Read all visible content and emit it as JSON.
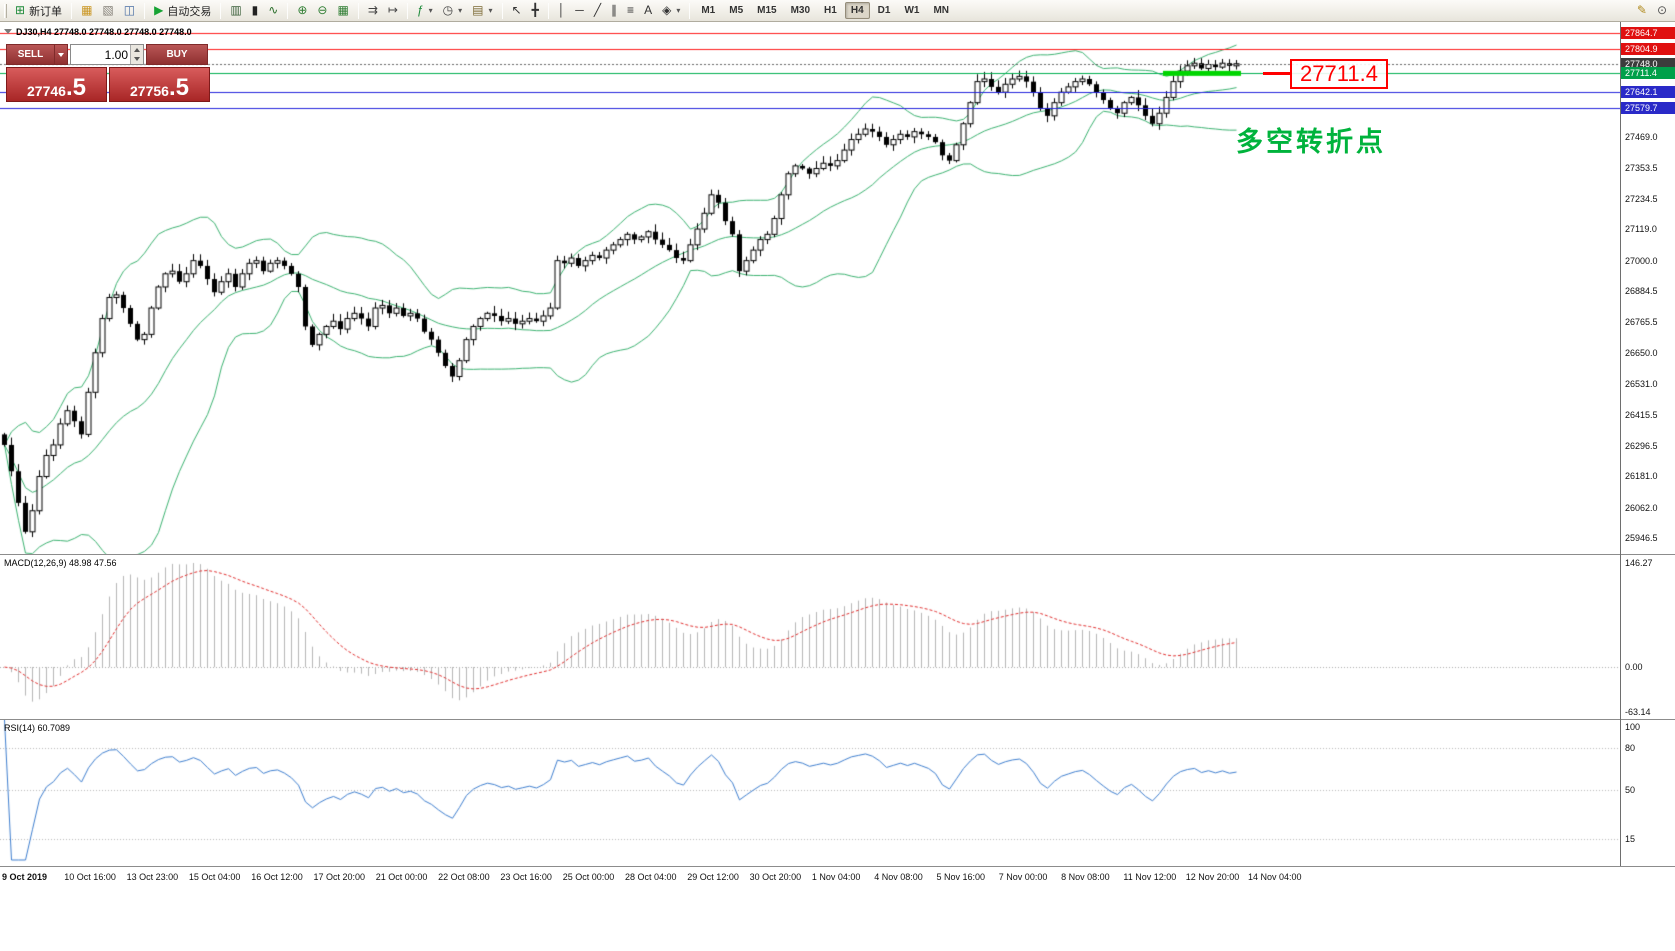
{
  "toolbar": {
    "new_order_label": "新订单",
    "autotrading_label": "自动交易",
    "groups": [
      {
        "items": [
          {
            "name": "new-order-button",
            "icon_name": "new-order-icon",
            "glyph": "⊞",
            "color": "#1d8a3a",
            "label_key": "new_order_label"
          }
        ]
      },
      {
        "items": [
          {
            "name": "new-chart-button",
            "icon_name": "new-chart-icon",
            "glyph": "▦",
            "color": "#c9941e"
          },
          {
            "name": "profiles-button",
            "icon_name": "profiles-icon",
            "glyph": "▧",
            "color": "#86827a"
          },
          {
            "name": "data-window-button",
            "icon_name": "data-window-icon",
            "glyph": "◫",
            "color": "#4a6fa5"
          }
        ]
      },
      {
        "items": [
          {
            "name": "autotrading-button",
            "icon_name": "autotrading-icon",
            "glyph": "▶",
            "color": "#17a334",
            "label_key": "autotrading_label"
          }
        ]
      },
      {
        "items": [
          {
            "name": "bar-chart-type-button",
            "icon_name": "bar-chart-icon",
            "glyph": "▥",
            "color": "#3a5f3a"
          },
          {
            "name": "candlestick-type-button",
            "icon_name": "candlestick-icon",
            "glyph": "▮",
            "color": "#222222"
          },
          {
            "name": "line-chart-type-button",
            "icon_name": "line-chart-icon",
            "glyph": "∿",
            "color": "#2a6e2a"
          }
        ]
      },
      {
        "items": [
          {
            "name": "zoom-in-button",
            "icon_name": "zoom-in-icon",
            "glyph": "⊕",
            "color": "#2e7d32"
          },
          {
            "name": "zoom-out-button",
            "icon_name": "zoom-out-icon",
            "glyph": "⊖",
            "color": "#2e7d32"
          },
          {
            "name": "tile-windows-button",
            "icon_name": "tile-windows-icon",
            "glyph": "▦",
            "color": "#2e7d32"
          }
        ]
      },
      {
        "items": [
          {
            "name": "auto-scroll-button",
            "icon_name": "auto-scroll-icon",
            "glyph": "⇉",
            "color": "#444444"
          },
          {
            "name": "chart-shift-button",
            "icon_name": "chart-shift-icon",
            "glyph": "↦",
            "color": "#444444"
          }
        ]
      },
      {
        "items": [
          {
            "name": "indicators-button",
            "icon_name": "indicators-icon",
            "glyph": "ƒ",
            "color": "#1d8a3a",
            "caret": true
          },
          {
            "name": "periods-button",
            "icon_name": "periods-icon",
            "glyph": "◷",
            "color": "#444444",
            "caret": true
          },
          {
            "name": "templates-button",
            "icon_name": "templates-icon",
            "glyph": "▤",
            "color": "#7c6a34",
            "caret": true
          }
        ]
      },
      {
        "items": [
          {
            "name": "cursor-button",
            "icon_name": "cursor-icon",
            "glyph": "↖",
            "color": "#333333"
          },
          {
            "name": "crosshair-button",
            "icon_name": "crosshair-icon",
            "glyph": "╋",
            "color": "#333333"
          }
        ]
      },
      {
        "items": [
          {
            "name": "vertical-line-button",
            "icon_name": "vertical-line-icon",
            "glyph": "│",
            "color": "#333333"
          },
          {
            "name": "horizontal-line-button",
            "icon_name": "horizontal-line-icon",
            "glyph": "─",
            "color": "#333333"
          },
          {
            "name": "trendline-button",
            "icon_name": "trendline-icon",
            "glyph": "╱",
            "color": "#333333"
          },
          {
            "name": "channel-button",
            "icon_name": "channel-icon",
            "glyph": "∥",
            "color": "#333333"
          },
          {
            "name": "fibonacci-button",
            "icon_name": "fibonacci-icon",
            "glyph": "≡",
            "color": "#333333"
          },
          {
            "name": "text-button",
            "icon_name": "text-icon",
            "glyph": "A",
            "color": "#333333"
          },
          {
            "name": "shapes-button",
            "icon_name": "shapes-icon",
            "glyph": "◈",
            "color": "#333333",
            "caret": true
          }
        ]
      }
    ],
    "timeframes": [
      "M1",
      "M5",
      "M15",
      "M30",
      "H1",
      "H4",
      "D1",
      "W1",
      "MN"
    ],
    "active_timeframe": "H4",
    "right_items": [
      {
        "name": "pencil-tool-button",
        "icon_name": "pencil-icon",
        "glyph": "✎",
        "color": "#b08a1e"
      },
      {
        "name": "search-button",
        "icon_name": "search-icon",
        "glyph": "⊙",
        "color": "#555555"
      }
    ]
  },
  "trade_panel": {
    "sell_label": "SELL",
    "buy_label": "BUY",
    "volume": "1.00",
    "sell_price_main": "27746",
    "sell_price_big": ".5",
    "buy_price_main": "27756",
    "buy_price_big": ".5"
  },
  "chart_data": {
    "type": "candlestick",
    "title": "DJ30,H4",
    "title_line": "DJ30,H4 27748.0 27748.0 27748.0 27748.0",
    "x_axis": {
      "labels": [
        "9 Oct 2019",
        "10 Oct 16:00",
        "13 Oct 23:00",
        "15 Oct 04:00",
        "16 Oct 12:00",
        "17 Oct 20:00",
        "21 Oct 00:00",
        "22 Oct 08:00",
        "23 Oct 16:00",
        "25 Oct 00:00",
        "28 Oct 04:00",
        "29 Oct 12:00",
        "30 Oct 20:00",
        "1 Nov 04:00",
        "4 Nov 08:00",
        "5 Nov 16:00",
        "7 Nov 00:00",
        "8 Nov 08:00",
        "11 Nov 12:00",
        "12 Nov 20:00",
        "14 Nov 04:00"
      ]
    },
    "y_axis": {
      "ticks": [
        27469.0,
        27353.5,
        27234.5,
        27119.0,
        27000.0,
        26884.5,
        26765.5,
        26650.0,
        26531.0,
        26415.5,
        26296.5,
        26181.0,
        26062.0,
        25946.5
      ]
    },
    "series": {
      "name": "DJ30 H4 closes (estimated from pixels)",
      "closes": [
        26300,
        26200,
        26080,
        25970,
        26050,
        26180,
        26260,
        26300,
        26380,
        26430,
        26390,
        26340,
        26500,
        26650,
        26780,
        26860,
        26870,
        26820,
        26760,
        26700,
        26720,
        26820,
        26900,
        26950,
        26960,
        26920,
        26950,
        27000,
        26980,
        26930,
        26880,
        26920,
        26950,
        26900,
        26950,
        26990,
        27000,
        26960,
        26990,
        27000,
        26980,
        26950,
        26900,
        26750,
        26680,
        26720,
        26750,
        26770,
        26740,
        26780,
        26800,
        26780,
        26750,
        26820,
        26830,
        26800,
        26820,
        26790,
        26800,
        26780,
        26730,
        26700,
        26650,
        26600,
        26560,
        26620,
        26700,
        26750,
        26780,
        26800,
        26790,
        26770,
        26780,
        26760,
        26770,
        26780,
        26770,
        26790,
        26820,
        27000,
        26990,
        27010,
        26980,
        27000,
        27020,
        27010,
        27040,
        27060,
        27080,
        27100,
        27080,
        27090,
        27110,
        27080,
        27060,
        27040,
        27010,
        27000,
        27060,
        27120,
        27180,
        27250,
        27220,
        27150,
        27100,
        26960,
        27000,
        27040,
        27080,
        27100,
        27160,
        27250,
        27330,
        27360,
        27350,
        27330,
        27350,
        27370,
        27360,
        27380,
        27420,
        27460,
        27480,
        27500,
        27490,
        27470,
        27440,
        27460,
        27480,
        27470,
        27490,
        27480,
        27470,
        27450,
        27400,
        27380,
        27440,
        27520,
        27600,
        27680,
        27690,
        27660,
        27640,
        27670,
        27690,
        27700,
        27680,
        27640,
        27580,
        27550,
        27600,
        27640,
        27660,
        27680,
        27690,
        27670,
        27640,
        27610,
        27580,
        27560,
        27600,
        27620,
        27590,
        27550,
        27520,
        27560,
        27620,
        27680,
        27720,
        27740,
        27750,
        27730,
        27745,
        27735,
        27750,
        27740,
        27748
      ]
    },
    "overlays": {
      "bollinger": {
        "period": 20,
        "deviation": 2,
        "color": "#3cb371"
      },
      "levels": [
        {
          "price": 27864.7,
          "color": "#ff1a1a",
          "tag_bg": "#e01010"
        },
        {
          "price": 27804.9,
          "color": "#ff1a1a",
          "tag_bg": "#e01010"
        },
        {
          "price": 27748.0,
          "color": "#666666",
          "tag_bg": "#3c3c3c",
          "dashed": true,
          "current": true
        },
        {
          "price": 27711.4,
          "color": "#00b050",
          "tag_bg": "#00a04a"
        },
        {
          "price": 27642.1,
          "color": "#2424dd",
          "tag_bg": "#2a2ac8"
        },
        {
          "price": 27579.7,
          "color": "#2424dd",
          "tag_bg": "#2a2ac8"
        }
      ],
      "support_zone": {
        "price": 27711.4,
        "bar_start": 166,
        "bar_end": 176,
        "color": "#00d500"
      }
    },
    "annotations": {
      "price_callout": {
        "text": "27711.4",
        "color": "#ff0000"
      },
      "note": {
        "text": "多空转折点",
        "color": "#00b33c"
      }
    },
    "indicators": [
      {
        "name": "macd",
        "label": "MACD(12,26,9) 48.98 47.56",
        "scale": [
          146.27,
          0,
          -63.14
        ],
        "histogram_color": "#b6b6b6",
        "signal_color": "#e23030"
      },
      {
        "name": "rsi",
        "label": "RSI(14) 60.7089",
        "scale": [
          100,
          80,
          50,
          15
        ],
        "levels": [
          80,
          50,
          15
        ],
        "color": "#3f7fd0"
      }
    ],
    "colors": {
      "candle_up": "#ffffff",
      "candle_down": "#000000",
      "candle_outline": "#000000",
      "background": "#ffffff"
    }
  }
}
